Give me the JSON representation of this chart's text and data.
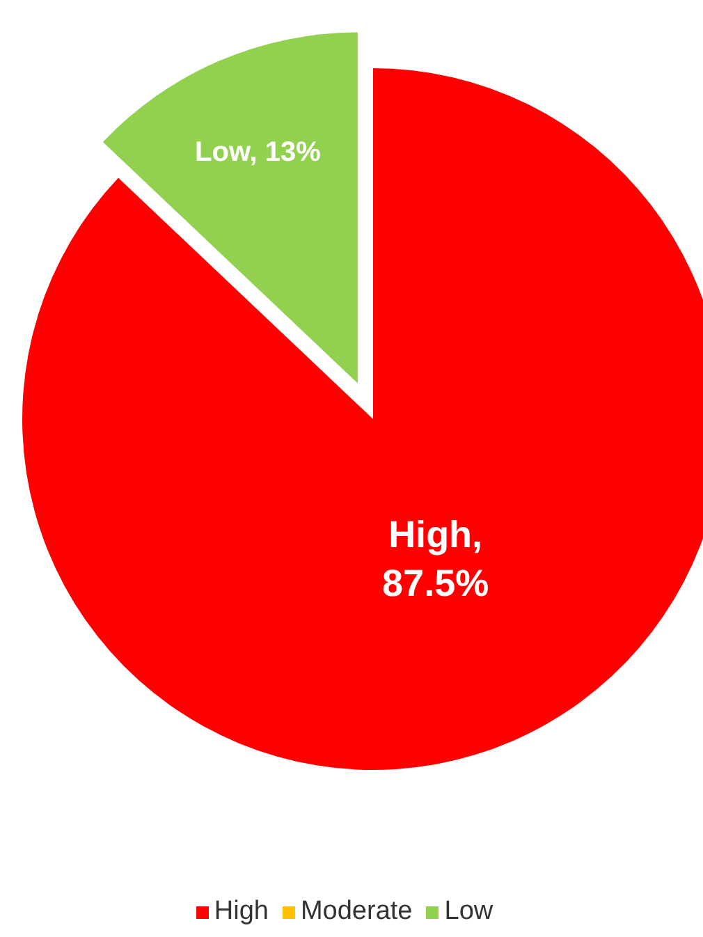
{
  "chart_data": {
    "type": "pie",
    "categories": [
      "High",
      "Moderate",
      "Low"
    ],
    "values": [
      87.5,
      0,
      13
    ],
    "value_labels": [
      "High, 87.5%",
      null,
      "Low, 13%"
    ],
    "colors": [
      "#ff0000",
      "#ffc000",
      "#92d050"
    ],
    "legend": "bottom"
  }
}
